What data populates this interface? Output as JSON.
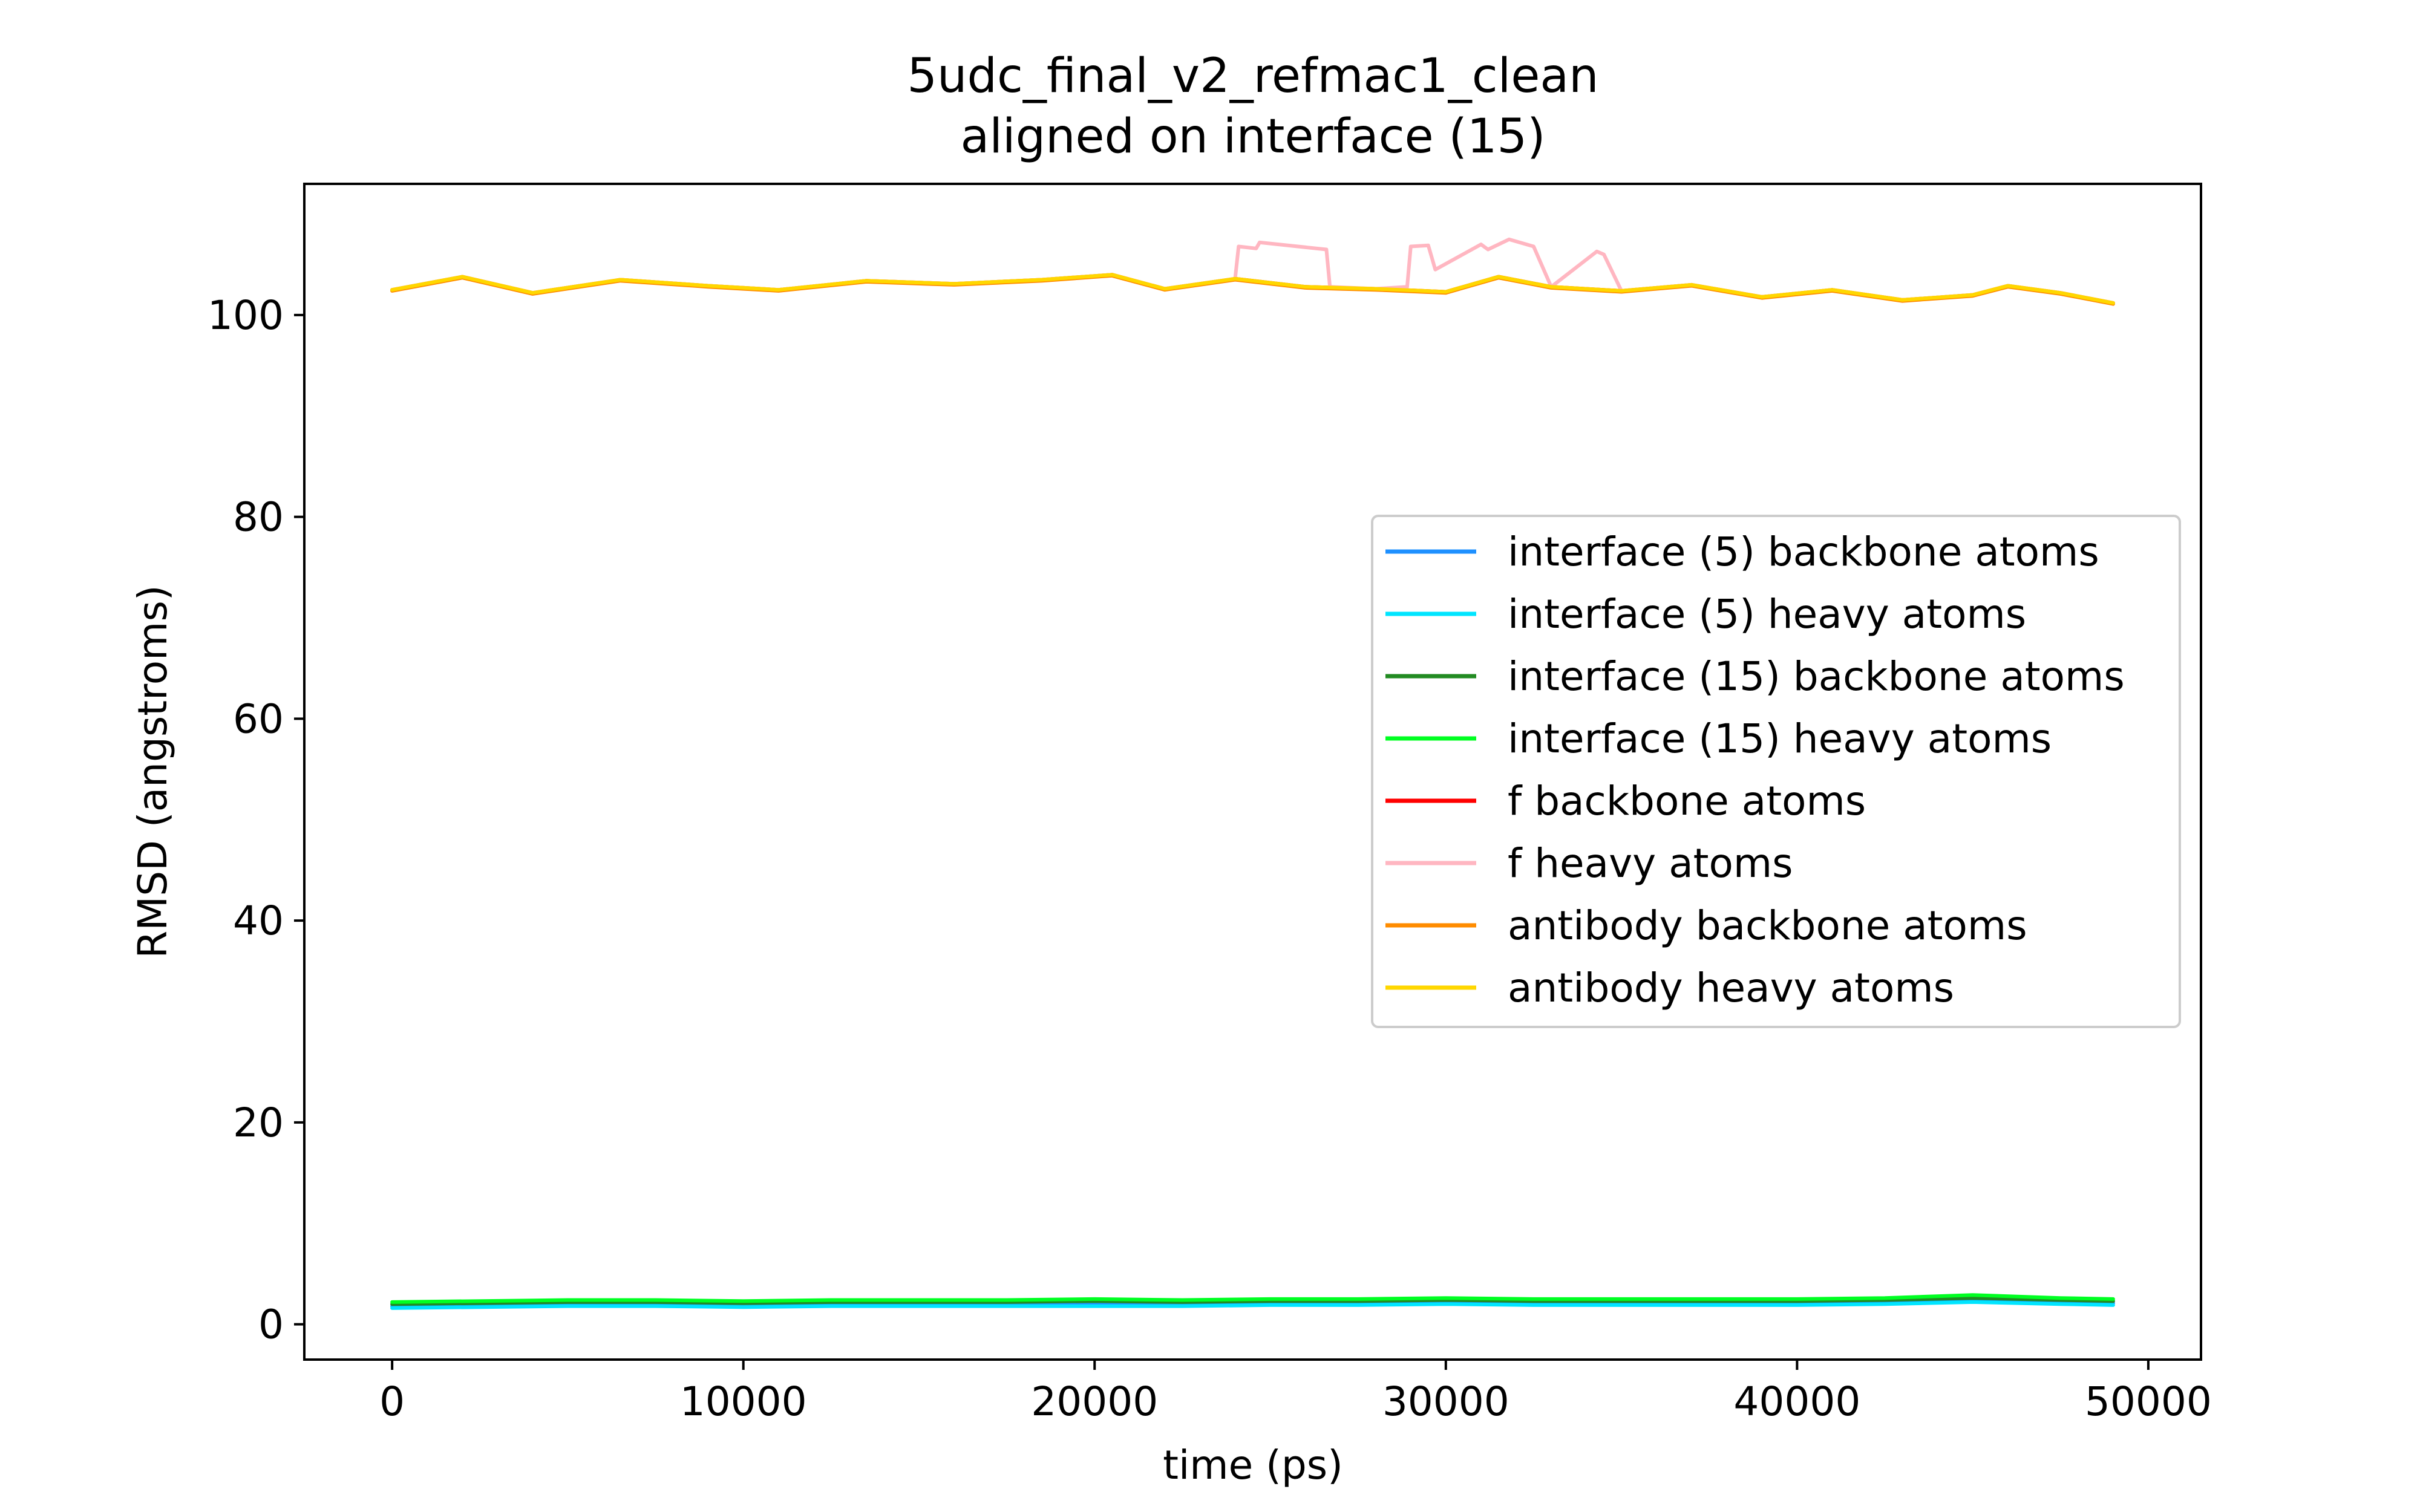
{
  "chart_data": {
    "type": "line",
    "title": "5udc_final_v2_refmac1_clean",
    "subtitle": "aligned on interface (15)",
    "xlabel": "time (ps)",
    "ylabel": "RMSD (angstroms)",
    "xlim": [
      -2500,
      51500
    ],
    "ylim": [
      -3.5,
      113
    ],
    "xticks": [
      0,
      10000,
      20000,
      30000,
      40000,
      50000
    ],
    "yticks": [
      0,
      20,
      40,
      60,
      80,
      100
    ],
    "xtick_labels": [
      "0",
      "10000",
      "20000",
      "30000",
      "40000",
      "50000"
    ],
    "ytick_labels": [
      "0",
      "20",
      "40",
      "60",
      "80",
      "100"
    ],
    "grid": false,
    "legend_position": "center-right",
    "series": [
      {
        "name": "interface (5) backbone atoms",
        "color": "#1e90ff",
        "x": [
          0,
          2500,
          5000,
          7500,
          10000,
          12500,
          15000,
          17500,
          20000,
          22500,
          25000,
          27500,
          30000,
          32500,
          35000,
          37500,
          40000,
          42500,
          45000,
          47500,
          49000
        ],
        "y": [
          1.8,
          1.9,
          2.0,
          2.0,
          1.9,
          2.0,
          2.0,
          2.0,
          2.0,
          2.0,
          2.1,
          2.1,
          2.2,
          2.1,
          2.1,
          2.1,
          2.1,
          2.2,
          2.4,
          2.2,
          2.1
        ]
      },
      {
        "name": "interface (5) heavy atoms",
        "color": "#00e5ff",
        "x": [
          0,
          2500,
          5000,
          7500,
          10000,
          12500,
          15000,
          17500,
          20000,
          22500,
          25000,
          27500,
          30000,
          32500,
          35000,
          37500,
          40000,
          42500,
          45000,
          47500,
          49000
        ],
        "y": [
          1.6,
          1.7,
          1.8,
          1.8,
          1.7,
          1.8,
          1.8,
          1.8,
          1.8,
          1.8,
          1.9,
          1.9,
          2.0,
          1.9,
          1.9,
          1.9,
          1.9,
          2.0,
          2.2,
          2.0,
          1.9
        ]
      },
      {
        "name": "interface (15) backbone atoms",
        "color": "#228b22",
        "x": [
          0,
          2500,
          5000,
          7500,
          10000,
          12500,
          15000,
          17500,
          20000,
          22500,
          25000,
          27500,
          30000,
          32500,
          35000,
          37500,
          40000,
          42500,
          45000,
          47500,
          49000
        ],
        "y": [
          2.0,
          2.1,
          2.2,
          2.2,
          2.1,
          2.2,
          2.2,
          2.2,
          2.3,
          2.2,
          2.3,
          2.3,
          2.4,
          2.3,
          2.3,
          2.3,
          2.3,
          2.4,
          2.6,
          2.4,
          2.3
        ]
      },
      {
        "name": "interface (15) heavy atoms",
        "color": "#00ff22",
        "x": [
          0,
          2500,
          5000,
          7500,
          10000,
          12500,
          15000,
          17500,
          20000,
          22500,
          25000,
          27500,
          30000,
          32500,
          35000,
          37500,
          40000,
          42500,
          45000,
          47500,
          49000
        ],
        "y": [
          2.2,
          2.3,
          2.4,
          2.4,
          2.3,
          2.4,
          2.4,
          2.4,
          2.5,
          2.4,
          2.5,
          2.5,
          2.6,
          2.5,
          2.5,
          2.5,
          2.5,
          2.6,
          2.9,
          2.6,
          2.5
        ]
      },
      {
        "name": "f backbone atoms",
        "color": "#ff0000",
        "x": [
          0,
          2000,
          4000,
          6500,
          9000,
          11000,
          13500,
          16000,
          18500,
          20500,
          22000,
          24000,
          26000,
          28000,
          30000,
          31500,
          33000,
          35000,
          37000,
          39000,
          41000,
          43000,
          45000,
          46000,
          47500,
          49000
        ],
        "y": [
          102.5,
          103.8,
          102.2,
          103.5,
          102.9,
          102.5,
          103.4,
          103.1,
          103.5,
          104.0,
          102.6,
          103.6,
          102.8,
          102.6,
          102.3,
          103.8,
          102.8,
          102.4,
          103.0,
          101.8,
          102.5,
          101.5,
          102.0,
          102.9,
          102.2,
          101.2
        ]
      },
      {
        "name": "f heavy atoms",
        "color": "#ffb6c1",
        "x": [
          0,
          2000,
          4000,
          6500,
          9000,
          11000,
          13500,
          16000,
          18500,
          20500,
          22000,
          24000,
          24100,
          24600,
          24700,
          26600,
          26700,
          28000,
          28900,
          29000,
          29500,
          29700,
          31000,
          31200,
          31800,
          32500,
          33000,
          34300,
          34500,
          35000,
          37000,
          39000,
          41000,
          43000,
          45000,
          46000,
          47500,
          49000
        ],
        "y": [
          102.5,
          103.8,
          102.2,
          103.5,
          102.9,
          102.5,
          103.4,
          103.1,
          103.5,
          104.0,
          102.6,
          103.6,
          106.8,
          106.6,
          107.2,
          106.5,
          102.8,
          102.6,
          102.8,
          106.8,
          106.9,
          104.5,
          107.0,
          106.5,
          107.5,
          106.8,
          102.8,
          106.3,
          106.0,
          102.4,
          103.0,
          101.8,
          102.5,
          101.5,
          102.0,
          102.9,
          102.2,
          101.2
        ]
      },
      {
        "name": "antibody backbone atoms",
        "color": "#ff8c00",
        "x": [
          0,
          2000,
          4000,
          6500,
          9000,
          11000,
          13500,
          16000,
          18500,
          20500,
          22000,
          24000,
          26000,
          28000,
          30000,
          31500,
          33000,
          35000,
          37000,
          39000,
          41000,
          43000,
          45000,
          46000,
          47500,
          49000
        ],
        "y": [
          102.4,
          103.7,
          102.1,
          103.4,
          102.8,
          102.4,
          103.3,
          103.0,
          103.4,
          103.9,
          102.5,
          103.5,
          102.7,
          102.5,
          102.2,
          103.7,
          102.7,
          102.3,
          102.9,
          101.7,
          102.4,
          101.4,
          101.9,
          102.8,
          102.1,
          101.1
        ]
      },
      {
        "name": "antibody heavy atoms",
        "color": "#ffd700",
        "x": [
          0,
          2000,
          4000,
          6500,
          9000,
          11000,
          13500,
          16000,
          18500,
          20500,
          22000,
          24000,
          26000,
          28000,
          30000,
          31500,
          33000,
          35000,
          37000,
          39000,
          41000,
          43000,
          45000,
          46000,
          47500,
          49000
        ],
        "y": [
          102.5,
          103.8,
          102.2,
          103.5,
          102.9,
          102.5,
          103.4,
          103.1,
          103.5,
          104.0,
          102.6,
          103.6,
          102.8,
          102.6,
          102.3,
          103.8,
          102.8,
          102.4,
          103.0,
          101.8,
          102.5,
          101.5,
          102.0,
          102.9,
          102.2,
          101.2
        ]
      }
    ]
  }
}
